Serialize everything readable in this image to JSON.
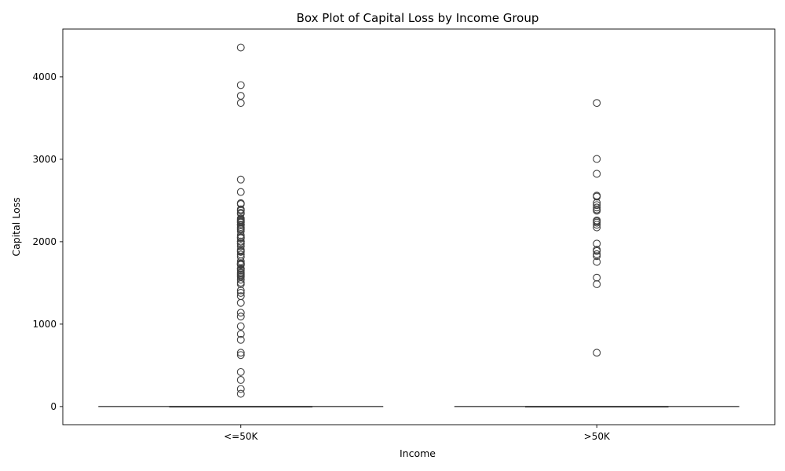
{
  "chart_data": {
    "type": "box",
    "title": "Box Plot of Capital Loss by Income Group",
    "xlabel": "Income",
    "ylabel": "Capital Loss",
    "categories": [
      "<=50K",
      ">50K"
    ],
    "ylim": [
      -220,
      4580
    ],
    "yticks": [
      0,
      1000,
      2000,
      3000,
      4000
    ],
    "box_color": "#3f3f3f",
    "series": [
      {
        "category": "<=50K",
        "min": 0,
        "q1": 0,
        "median": 0,
        "q3": 0,
        "max": 0,
        "outliers": [
          155,
          213,
          323,
          419,
          625,
          653,
          810,
          880,
          974,
          1092,
          1138,
          1258,
          1340,
          1380,
          1408,
          1485,
          1504,
          1539,
          1573,
          1590,
          1602,
          1617,
          1628,
          1648,
          1668,
          1669,
          1672,
          1719,
          1721,
          1726,
          1735,
          1740,
          1762,
          1816,
          1844,
          1876,
          1887,
          1902,
          1944,
          1974,
          1980,
          2001,
          2002,
          2042,
          2051,
          2057,
          2080,
          2129,
          2149,
          2163,
          2179,
          2201,
          2205,
          2206,
          2231,
          2238,
          2246,
          2258,
          2267,
          2282,
          2339,
          2352,
          2377,
          2392,
          2457,
          2467,
          2603,
          2754,
          3683,
          3770,
          3900,
          4356
        ]
      },
      {
        "category": ">50K",
        "min": 0,
        "q1": 0,
        "median": 0,
        "q3": 0,
        "max": 0,
        "outliers": [
          653,
          1485,
          1564,
          1755,
          1825,
          1848,
          1887,
          1902,
          1977,
          2174,
          2206,
          2231,
          2246,
          2258,
          2377,
          2392,
          2415,
          2444,
          2472,
          2547,
          2559,
          2824,
          3004,
          3683
        ]
      }
    ]
  }
}
